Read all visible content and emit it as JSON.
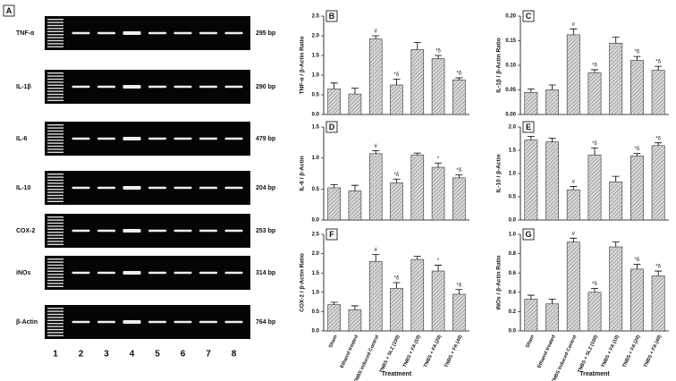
{
  "gel": {
    "panel": "A",
    "rows": [
      "TNF-α",
      "IL-1β",
      "IL-6",
      "IL-10",
      "COX-2",
      "iNOs",
      "β-Actin"
    ],
    "sizes": [
      "295 bp",
      "290 bp",
      "479 bp",
      "204 bp",
      "253 bp",
      "314 bp",
      "764 bp"
    ],
    "lanes": [
      "1",
      "2",
      "3",
      "4",
      "5",
      "6",
      "7",
      "8"
    ]
  },
  "chart_data": [
    {
      "type": "bar",
      "panel": "B",
      "ylabel": "TNF-α / β-Actin Ratio",
      "values": [
        0.65,
        0.52,
        1.92,
        0.75,
        1.65,
        1.42,
        0.88
      ],
      "errors": [
        0.15,
        0.15,
        0.08,
        0.15,
        0.18,
        0.08,
        0.05
      ],
      "annotations": [
        null,
        null,
        "#",
        "*δ",
        null,
        "*δ",
        "*δ"
      ],
      "ylim": [
        0,
        2.5
      ],
      "yticks": [
        {
          "value": 0,
          "label": "0.0"
        },
        0.5,
        {
          "value": 1,
          "label": "1.0"
        },
        1.5,
        {
          "value": 2,
          "label": "2.0"
        },
        2.5
      ]
    },
    {
      "type": "bar",
      "panel": "C",
      "ylabel": "IL-1β / β-Actin Ratio",
      "values": [
        0.045,
        0.05,
        0.162,
        0.085,
        0.145,
        0.11,
        0.09
      ],
      "errors": [
        0.007,
        0.01,
        0.012,
        0.006,
        0.012,
        0.008,
        0.008
      ],
      "annotations": [
        null,
        null,
        "#",
        "*δ",
        null,
        "*δ",
        "*δ"
      ],
      "ylim": [
        0,
        0.2
      ],
      "yticks": [
        {
          "value": 0,
          "label": "0.00"
        },
        0.05,
        {
          "value": 0.1,
          "label": "0.10"
        },
        0.15,
        {
          "value": 0.2,
          "label": "0.20"
        }
      ]
    },
    {
      "type": "bar",
      "panel": "D",
      "ylabel": "IL-6 / β-Actin",
      "values": [
        0.52,
        0.47,
        1.07,
        0.6,
        1.05,
        0.85,
        0.68
      ],
      "errors": [
        0.05,
        0.09,
        0.05,
        0.06,
        0.03,
        0.07,
        0.05
      ],
      "annotations": [
        null,
        null,
        "#",
        "*δ",
        null,
        "*",
        "*δ"
      ],
      "ylim": [
        0,
        1.5
      ],
      "yticks": [
        {
          "value": 0,
          "label": "0.0"
        },
        0.5,
        {
          "value": 1,
          "label": "1.0"
        },
        1.5
      ]
    },
    {
      "type": "bar",
      "panel": "E",
      "ylabel": "IL-10 / β-Actin",
      "values": [
        1.72,
        1.68,
        0.65,
        1.4,
        0.82,
        1.38,
        1.6
      ],
      "errors": [
        0.08,
        0.08,
        0.07,
        0.15,
        0.12,
        0.05,
        0.06
      ],
      "annotations": [
        null,
        null,
        "#",
        "*δ",
        null,
        "*δ",
        "*δ"
      ],
      "ylim": [
        0,
        2
      ],
      "yticks": [
        {
          "value": 0,
          "label": "0.0"
        },
        0.5,
        {
          "value": 1,
          "label": "1.0"
        },
        1.5,
        {
          "value": 2,
          "label": "2.0"
        }
      ]
    },
    {
      "type": "bar",
      "panel": "F",
      "ylabel": "COX-2 / β-Actin Ratio",
      "xlabel": "Treatment",
      "categories": [
        "Sham",
        "Ethanol treated",
        "TNBS induced Control",
        "TNBS + SLZ (100)",
        "TNBS + FA (10)",
        "TNBS + FA (20)",
        "TNBS + FA (40)"
      ],
      "values": [
        0.68,
        0.55,
        1.8,
        1.1,
        1.85,
        1.55,
        0.95
      ],
      "errors": [
        0.06,
        0.1,
        0.18,
        0.15,
        0.08,
        0.15,
        0.12
      ],
      "annotations": [
        null,
        null,
        "#",
        "*δ",
        null,
        "*",
        "*δ"
      ],
      "ylim": [
        0,
        2.5
      ],
      "yticks": [
        {
          "value": 0,
          "label": "0.0"
        },
        0.5,
        {
          "value": 1,
          "label": "1.0"
        },
        1.5,
        {
          "value": 2,
          "label": "2.0"
        },
        2.5
      ]
    },
    {
      "type": "bar",
      "panel": "G",
      "ylabel": "iNOs / β-Actin Ratio",
      "xlabel": "Treatment",
      "categories": [
        "Sham",
        "Ethanol treated",
        "TNBS induced Control",
        "TNBS + SLZ (100)",
        "TNBS + FA (10)",
        "TNBS + FA (20)",
        "TNBS + FA (40)"
      ],
      "values": [
        0.33,
        0.28,
        0.92,
        0.4,
        0.87,
        0.64,
        0.57
      ],
      "errors": [
        0.04,
        0.05,
        0.04,
        0.04,
        0.05,
        0.05,
        0.05
      ],
      "annotations": [
        null,
        null,
        "#",
        "*δ",
        null,
        "*δ",
        "*δ"
      ],
      "ylim": [
        0,
        1
      ],
      "yticks": [
        {
          "value": 0,
          "label": "0.0"
        },
        0.2,
        0.4,
        0.6,
        0.8,
        {
          "value": 1,
          "label": "1.0"
        }
      ]
    }
  ]
}
